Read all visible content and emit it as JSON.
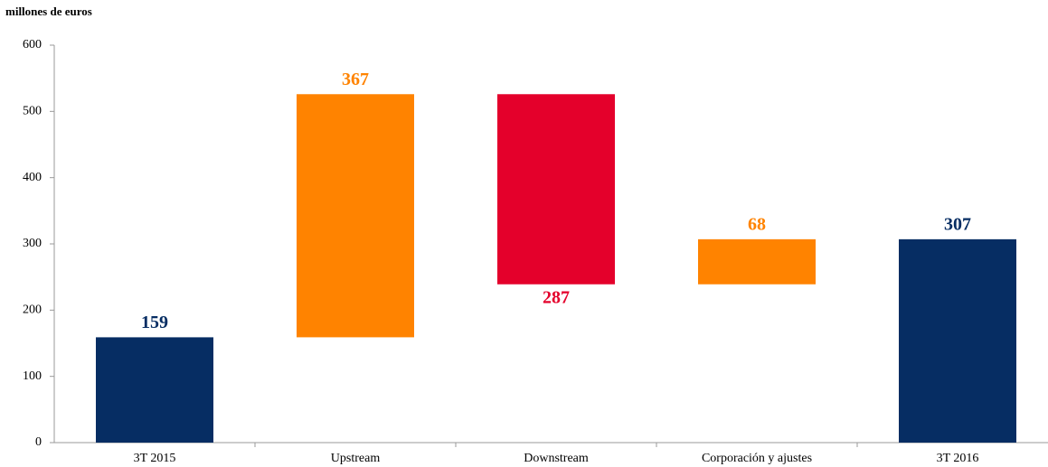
{
  "chart_data": {
    "type": "waterfall",
    "title": "millones de euros",
    "categories": [
      "3T 2015",
      "Upstream",
      "Downstream",
      "Corporación y ajustes",
      "3T 2016"
    ],
    "values": [
      159,
      367,
      -287,
      68,
      307
    ],
    "value_labels": [
      "159",
      "367",
      "287",
      "68",
      "307"
    ],
    "totals": [
      true,
      false,
      false,
      false,
      true
    ],
    "colors": [
      "#062d63",
      "#ff8300",
      "#e4002b",
      "#ff8300",
      "#062d63"
    ],
    "ylim": [
      0,
      600
    ],
    "yticks": [
      0,
      100,
      200,
      300,
      400,
      500,
      600
    ],
    "grid": false
  }
}
